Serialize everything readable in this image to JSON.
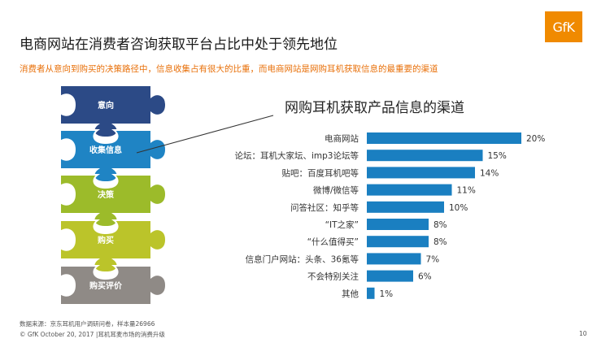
{
  "header": {
    "title": "电商网站在消费者咨询获取平台占比中处于领先地位",
    "subtitle": "消费者从意向到购买的决策路径中，信息收集占有很大的比重，而电商网站是网购耳机获取信息的最重要的渠道",
    "logo_text": "GfK"
  },
  "puzzle": {
    "pieces": [
      {
        "label": "意向",
        "color": "#2c4a86"
      },
      {
        "label": "收集信息",
        "color": "#1f84c4"
      },
      {
        "label": "决策",
        "color": "#9cbb2a"
      },
      {
        "label": "购买",
        "color": "#bbc42a"
      },
      {
        "label": "购买评价",
        "color": "#8f8a86"
      }
    ]
  },
  "chart_data": {
    "type": "bar",
    "orientation": "horizontal",
    "title": "网购耳机获取产品信息的渠道",
    "categories": [
      "电商网站",
      "论坛：耳机大家坛、imp3论坛等",
      "贴吧：百度耳机吧等",
      "微博/微信等",
      "问答社区：知乎等",
      "“IT之家”",
      "“什么值得买”",
      "信息门户网站：头条、36氪等",
      "不会特别关注",
      "其他"
    ],
    "values": [
      20,
      15,
      14,
      11,
      10,
      8,
      8,
      7,
      6,
      1
    ],
    "value_labels": [
      "20%",
      "15%",
      "14%",
      "11%",
      "10%",
      "8%",
      "8%",
      "7%",
      "6%",
      "1%"
    ],
    "bar_color": "#1a7fc1",
    "xlim": [
      0,
      20
    ]
  },
  "footer": {
    "source": "数据来源：京东耳机用户调研问卷，样本量26966",
    "copyright": "© GfK October 20, 2017 |耳机耳麦市场的消费升级",
    "page_number": "10"
  }
}
